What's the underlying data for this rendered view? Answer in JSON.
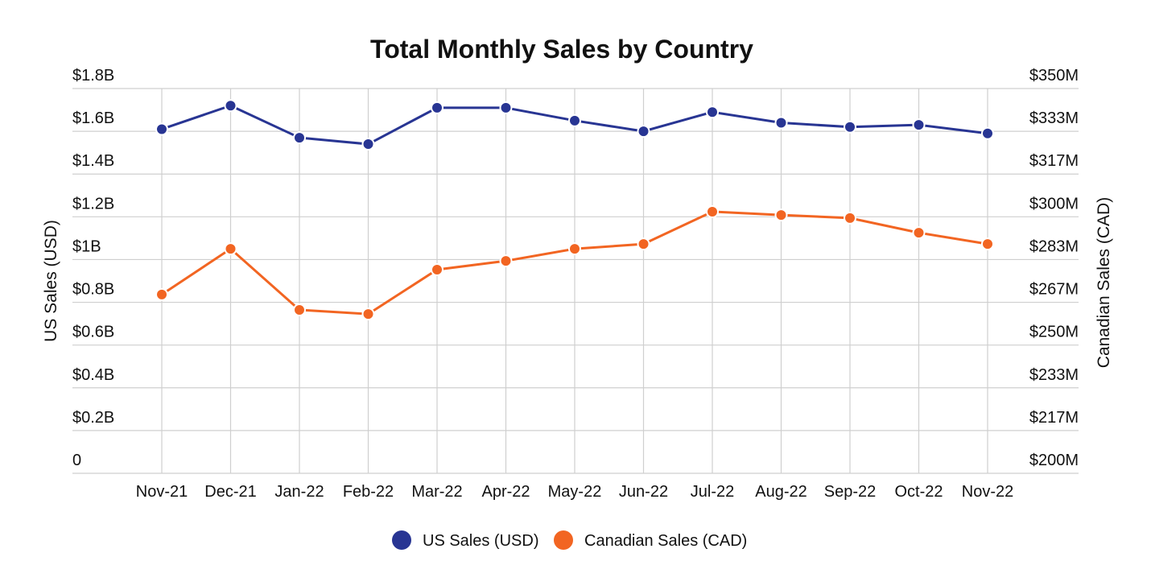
{
  "chart_data": {
    "type": "line",
    "title": "Total Monthly Sales by Country",
    "ylabel": "US Sales (USD)",
    "y2label": "Canadian Sales (CAD)",
    "categories": [
      "Nov-21",
      "Dec-21",
      "Jan-22",
      "Feb-22",
      "Mar-22",
      "Apr-22",
      "May-22",
      "Jun-22",
      "Jul-22",
      "Aug-22",
      "Sep-22",
      "Oct-22",
      "Nov-22"
    ],
    "ylim": [
      0,
      1.8
    ],
    "y2lim": [
      200,
      350
    ],
    "yticks": [
      0,
      0.2,
      0.4,
      0.6,
      0.8,
      1.0,
      1.2,
      1.4,
      1.6,
      1.8
    ],
    "ytick_labels": [
      "0",
      "$0.2B",
      "$0.4B",
      "$0.6B",
      "$0.8B",
      "$1B",
      "$1.2B",
      "$1.4B",
      "$1.6B",
      "$1.8B"
    ],
    "y2ticks": [
      200,
      216.67,
      233.33,
      250,
      266.67,
      283.33,
      300,
      316.67,
      333.33,
      350
    ],
    "y2tick_labels": [
      "$200M",
      "$217M",
      "$233M",
      "$250M",
      "$267M",
      "$283M",
      "$300M",
      "$317M",
      "$333M",
      "$350M"
    ],
    "grid": true,
    "legend_position": "bottom-center",
    "series": [
      {
        "name": "US Sales (USD)",
        "axis": "left",
        "unit": "billion USD",
        "color": "#283593",
        "values": [
          1.61,
          1.72,
          1.57,
          1.54,
          1.71,
          1.71,
          1.65,
          1.6,
          1.69,
          1.64,
          1.62,
          1.63,
          1.59
        ]
      },
      {
        "name": "Canadian Sales (CAD)",
        "axis": "right",
        "unit": "million CAD",
        "color": "#f26522",
        "values": [
          269.7,
          287.5,
          263.7,
          262.1,
          279.4,
          282.8,
          287.5,
          289.4,
          302.0,
          300.7,
          299.5,
          293.8,
          289.4
        ]
      }
    ]
  }
}
